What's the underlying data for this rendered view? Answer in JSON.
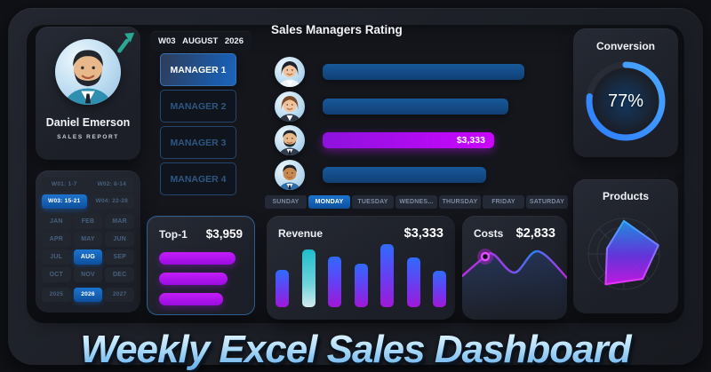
{
  "profile": {
    "name": "Daniel Emerson",
    "role": "SALES REPORT",
    "avatar": "man-beard-suit",
    "trend_icon": "arrow-up-right"
  },
  "period": {
    "week": "W03",
    "month": "AUGUST",
    "year": "2026"
  },
  "managers": {
    "items": [
      {
        "label": "MANAGER 1",
        "active": true
      },
      {
        "label": "MANAGER 2",
        "active": false
      },
      {
        "label": "MANAGER 3",
        "active": false
      },
      {
        "label": "MANAGER 4",
        "active": false
      }
    ]
  },
  "calendar": {
    "weeks": [
      {
        "label": "W01: 1-7",
        "active": false
      },
      {
        "label": "W02: 8-14",
        "active": false
      },
      {
        "label": "W03: 15-21",
        "active": true
      },
      {
        "label": "W04: 22-28",
        "active": false
      }
    ],
    "months": [
      {
        "label": "JAN"
      },
      {
        "label": "FEB"
      },
      {
        "label": "MAR"
      },
      {
        "label": "APR"
      },
      {
        "label": "MAY"
      },
      {
        "label": "JUN"
      },
      {
        "label": "JUL"
      },
      {
        "label": "AUG",
        "active": true
      },
      {
        "label": "SEP"
      },
      {
        "label": "OCT"
      },
      {
        "label": "NOV"
      },
      {
        "label": "DEC"
      }
    ],
    "years": [
      {
        "label": "2025"
      },
      {
        "label": "2026",
        "active": true
      },
      {
        "label": "2027"
      }
    ]
  },
  "rating": {
    "title": "Sales Managers Rating",
    "rows": [
      {
        "avatar": "woman-dark-hair",
        "width_pct": 100,
        "color": "blue",
        "label": ""
      },
      {
        "avatar": "woman-brown-hair",
        "width_pct": 92,
        "color": "blue",
        "label": ""
      },
      {
        "avatar": "man-beard",
        "width_pct": 85,
        "color": "magenta",
        "label": "$3,333"
      },
      {
        "avatar": "man-tan",
        "width_pct": 81,
        "color": "blue",
        "label": ""
      }
    ]
  },
  "days": {
    "items": [
      {
        "label": "SUNDAY",
        "active": false
      },
      {
        "label": "MONDAY",
        "active": true
      },
      {
        "label": "TUESDAY",
        "active": false
      },
      {
        "label": "WEDNES...",
        "active": false
      },
      {
        "label": "THURSDAY",
        "active": false
      },
      {
        "label": "FRIDAY",
        "active": false
      },
      {
        "label": "SATURDAY",
        "active": false
      }
    ]
  },
  "top1": {
    "label": "Top-1",
    "value": "$3,959",
    "bars_pct": [
      100,
      90,
      84
    ]
  },
  "revenue": {
    "label": "Revenue",
    "value": "$3,333"
  },
  "costs": {
    "label": "Costs",
    "value": "$2,833"
  },
  "conversion": {
    "title": "Conversion",
    "value": "77%",
    "percent": 77,
    "ring_color": "#2e7dff"
  },
  "products": {
    "title": "Products"
  },
  "footer": {
    "title": "Weekly Excel Sales Dashboard"
  },
  "chart_data": [
    {
      "name": "sales_managers_rating",
      "type": "bar",
      "orientation": "horizontal",
      "categories": [
        "Manager A (woman, dark hair)",
        "Manager B (woman, brown hair)",
        "Manager C (man, beard)",
        "Manager D (man, tan)"
      ],
      "values_pct": [
        100,
        92,
        85,
        81
      ],
      "labels": [
        "",
        "",
        "$3,333",
        ""
      ],
      "colors": [
        "#15548f",
        "#15548f",
        "#bb06ff",
        "#15548f"
      ]
    },
    {
      "name": "top1_bars",
      "type": "bar",
      "orientation": "horizontal",
      "values_pct": [
        100,
        90,
        84
      ],
      "total": "$3,959",
      "color": "#b10df0"
    },
    {
      "name": "revenue_by_day",
      "type": "bar",
      "categories": [
        "1",
        "2",
        "3",
        "4",
        "5",
        "6",
        "7"
      ],
      "values_pct": [
        59,
        92,
        80,
        69,
        100,
        79,
        58
      ],
      "highlight_index": 1,
      "total": "$3,333",
      "bar_gradient": [
        "#2f6bff",
        "#a018d8"
      ],
      "highlight_gradient": [
        "#1fbccc",
        "#d2ebef"
      ]
    },
    {
      "name": "costs_trend",
      "type": "line",
      "points_pct": [
        [
          0,
          60
        ],
        [
          22,
          40
        ],
        [
          34,
          38
        ],
        [
          52,
          55
        ],
        [
          72,
          35
        ],
        [
          100,
          62
        ]
      ],
      "marker_index": 1,
      "total": "$2,833",
      "line_colors": [
        "#b62fe0",
        "#2f7df0",
        "#c22be0"
      ]
    },
    {
      "name": "conversion_donut",
      "type": "donut",
      "percent": 77,
      "label": "77%",
      "ring_color": "#2e7dff"
    },
    {
      "name": "products_radar",
      "type": "radar",
      "axes": 5,
      "values_pct": [
        93,
        100,
        88,
        100,
        50
      ],
      "fill_gradient": [
        "#2196f3",
        "#d018f0"
      ]
    }
  ]
}
